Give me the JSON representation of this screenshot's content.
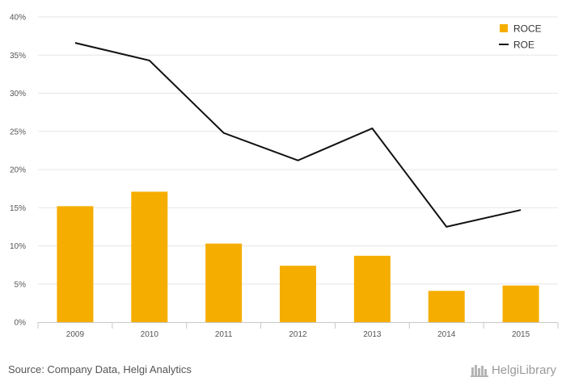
{
  "chart_data": {
    "type": "bar",
    "categories": [
      "2009",
      "2010",
      "2011",
      "2012",
      "2013",
      "2014",
      "2015"
    ],
    "series": [
      {
        "name": "ROCE",
        "kind": "bar",
        "color": "#f5ad00",
        "values": [
          15.2,
          17.1,
          10.3,
          7.4,
          8.7,
          4.1,
          4.8
        ]
      },
      {
        "name": "ROE",
        "kind": "line",
        "color": "#111111",
        "values": [
          36.6,
          34.3,
          24.8,
          21.2,
          25.4,
          12.5,
          14.7
        ]
      }
    ],
    "ylim": [
      0,
      40
    ],
    "yticks": [
      0,
      5,
      10,
      15,
      20,
      25,
      30,
      35,
      40
    ],
    "ytick_labels": [
      "0%",
      "5%",
      "10%",
      "15%",
      "20%",
      "25%",
      "30%",
      "35%",
      "40%"
    ],
    "grid": true,
    "legend": "top-right",
    "title": "",
    "xlabel": "",
    "ylabel": ""
  },
  "footer": {
    "source": "Source: Company Data, Helgi Analytics",
    "brand": "HelgiLibrary"
  }
}
